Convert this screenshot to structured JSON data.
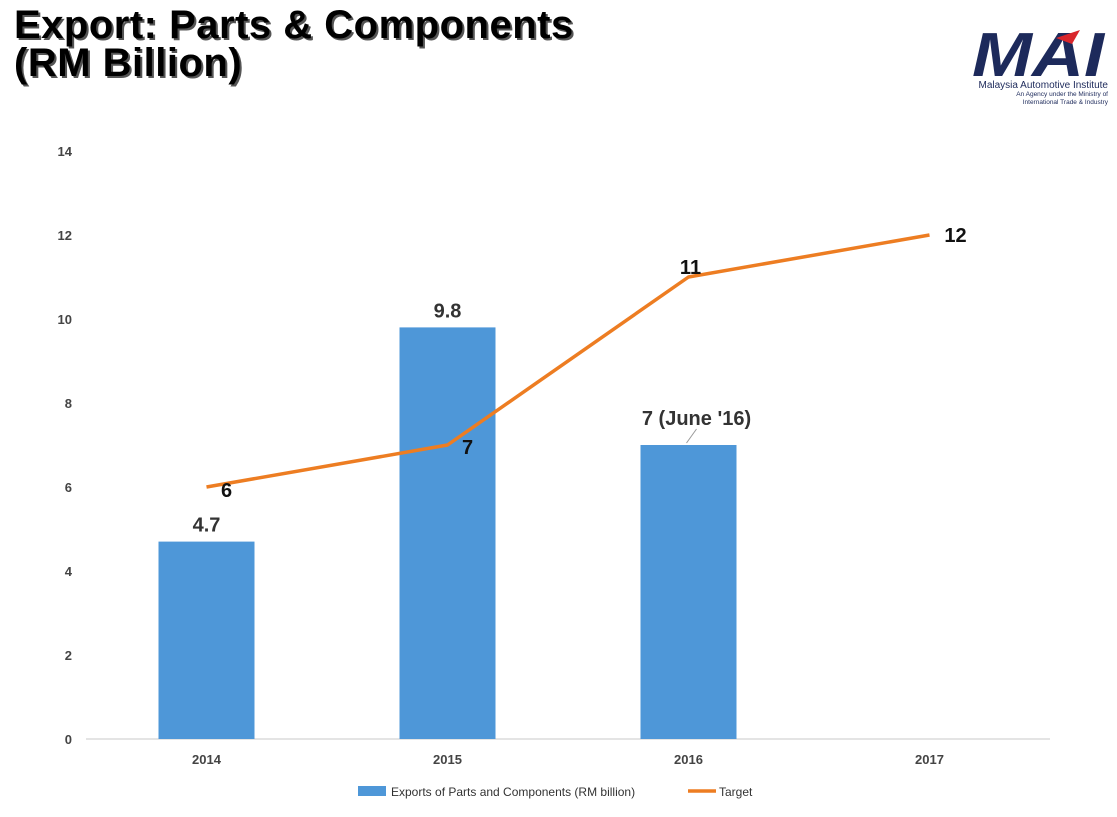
{
  "title": {
    "line1": "Export: Parts & Components",
    "line2": "(RM Billion)"
  },
  "logo": {
    "name": "MAI",
    "org": "Malaysia Automotive Institute",
    "tagline1": "An Agency under the Ministry of",
    "tagline2": "International Trade & Industry"
  },
  "colors": {
    "bar": "#4e97d8",
    "line": "#ed7d22",
    "axis": "#c8c8c8",
    "logo": "#1d2a5b",
    "logo_accent": "#d9262c"
  },
  "chart_data": {
    "type": "bar",
    "categories": [
      "2014",
      "2015",
      "2016",
      "2017"
    ],
    "ylim": [
      0,
      14
    ],
    "yticks": [
      0,
      2,
      4,
      6,
      8,
      10,
      12,
      14
    ],
    "grid": false,
    "legend_position": "bottom",
    "series": [
      {
        "name": "Exports of Parts and Components (RM billion)",
        "type": "bar",
        "values": [
          4.7,
          9.8,
          7,
          null
        ],
        "labels": [
          "4.7",
          "9.8",
          "7 (June '16)",
          ""
        ]
      },
      {
        "name": "Target",
        "type": "line",
        "values": [
          6,
          7,
          11,
          12
        ],
        "labels": [
          "6",
          "7",
          "11",
          "12"
        ]
      }
    ]
  }
}
